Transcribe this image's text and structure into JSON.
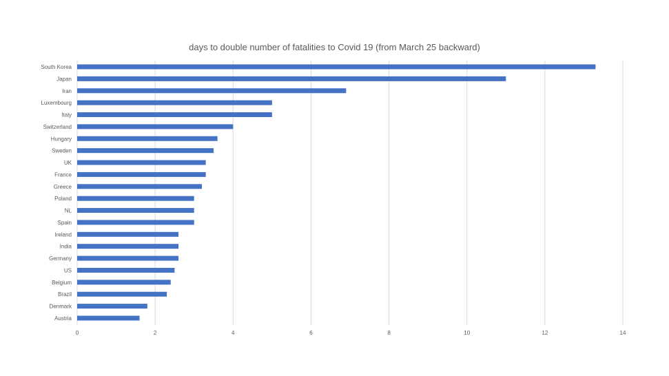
{
  "chart_data": {
    "type": "bar",
    "orientation": "horizontal",
    "title": "days to double number of fatalities to Covid 19 (from March 25 backward)",
    "xlabel": "",
    "ylabel": "",
    "xlim": [
      0,
      14
    ],
    "x_ticks": [
      0,
      2,
      4,
      6,
      8,
      10,
      12,
      14
    ],
    "grid": "vertical",
    "legend": "none",
    "bar_color": "#4472C4",
    "categories": [
      "South Korea",
      "Japan",
      "Iran",
      "Luxembourg",
      "Italy",
      "Switzerland",
      "Hungary",
      "Sweden",
      "UK",
      "France",
      "Greece",
      "Poland",
      "NL",
      "Spain",
      "Ireland",
      "India",
      "Germany",
      "US",
      "Belgium",
      "Brazil",
      "Denmark",
      "Austria"
    ],
    "values": [
      13.3,
      11.0,
      6.9,
      5.0,
      5.0,
      4.0,
      3.6,
      3.5,
      3.3,
      3.3,
      3.2,
      3.0,
      3.0,
      3.0,
      2.6,
      2.6,
      2.6,
      2.5,
      2.4,
      2.3,
      1.8,
      1.6
    ]
  }
}
